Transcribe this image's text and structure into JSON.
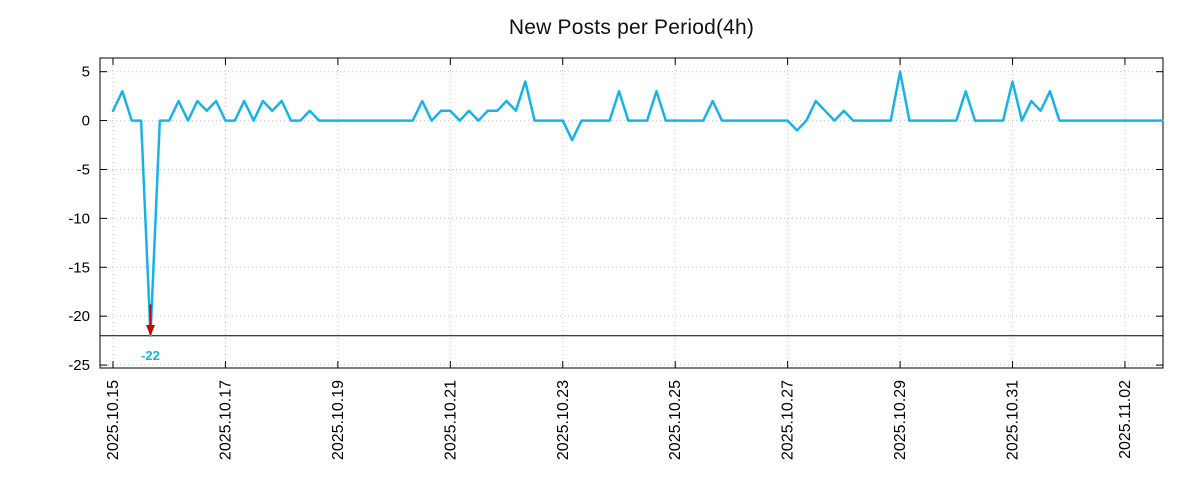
{
  "chart_data": {
    "type": "line",
    "title": "New Posts per Period(4h)",
    "period_hours": 4,
    "grid": true,
    "legend": "none",
    "ylim": [
      -25.3,
      6.4
    ],
    "y_ticks": [
      5,
      0,
      -5,
      -10,
      -15,
      -20,
      -25
    ],
    "x_ticks": [
      {
        "day": 0,
        "label": "2025.10.15"
      },
      {
        "day": 2,
        "label": "2025.10.17"
      },
      {
        "day": 4,
        "label": "2025.10.19"
      },
      {
        "day": 6,
        "label": "2025.10.21"
      },
      {
        "day": 8,
        "label": "2025.10.23"
      },
      {
        "day": 10,
        "label": "2025.10.25"
      },
      {
        "day": 12,
        "label": "2025.10.27"
      },
      {
        "day": 14,
        "label": "2025.10.29"
      },
      {
        "day": 16,
        "label": "2025.10.31"
      },
      {
        "day": 18,
        "label": "2025.11.02"
      }
    ],
    "values": [
      1,
      3,
      0,
      0,
      -22,
      0,
      0,
      2,
      0,
      2,
      1,
      2,
      0,
      0,
      2,
      0,
      2,
      1,
      2,
      0,
      0,
      1,
      0,
      0,
      0,
      0,
      0,
      0,
      0,
      0,
      0,
      0,
      0,
      2,
      0,
      1,
      1,
      0,
      1,
      0,
      1,
      1,
      2,
      1,
      4,
      0,
      0,
      0,
      0,
      -2,
      0,
      0,
      0,
      0,
      3,
      0,
      0,
      0,
      3,
      0,
      0,
      0,
      0,
      0,
      2,
      0,
      0,
      0,
      0,
      0,
      0,
      0,
      0,
      -1,
      0,
      2,
      1,
      0,
      1,
      0,
      0,
      0,
      0,
      0,
      5,
      0,
      0,
      0,
      0,
      0,
      0,
      3,
      0,
      0,
      0,
      0,
      4,
      0,
      2,
      1,
      3,
      0,
      0,
      0,
      0,
      0,
      0,
      0,
      0,
      0,
      0,
      0,
      0
    ],
    "min_marker": {
      "day": 0.6667,
      "value": -22,
      "label": "-22"
    },
    "min_line_value": -22,
    "colors": {
      "line": "#17b3e8",
      "grid": "#c4c4c4",
      "border": "#000000",
      "text": "#000000",
      "arrow": "#cc0000",
      "annotation": "#17b3e8"
    }
  }
}
